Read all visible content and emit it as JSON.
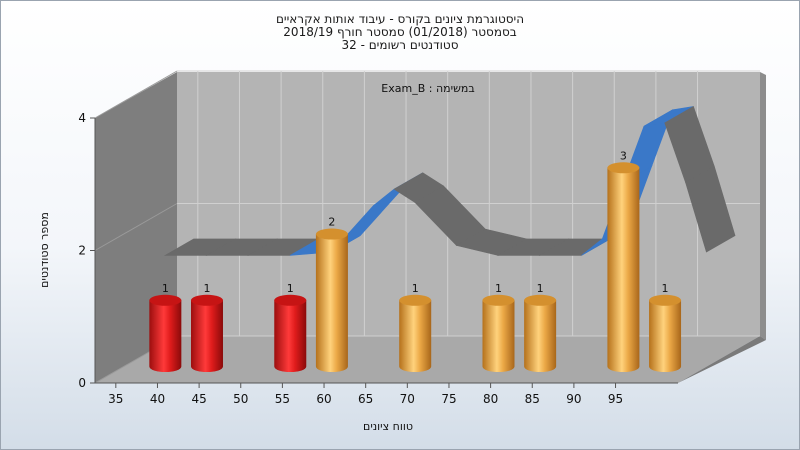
{
  "chart_data": {
    "type": "bar",
    "title_lines": [
      "היסטוגרמת ציונים בקורס - עיבוד אותות אקראיים",
      "בסמסטר  (01/2018)  סמסטר חורף 2018/19",
      "32 - סטודנטים רשומים"
    ],
    "subtitle": "Exam_B : במשימה",
    "xlabel": "טווח ציונים",
    "ylabel": "מספר סטודנטים",
    "x_ticks": [
      "35",
      "40",
      "45",
      "50",
      "55",
      "60",
      "65",
      "70",
      "75",
      "80",
      "85",
      "90",
      "95"
    ],
    "y_ticks": [
      "0",
      "2",
      "4"
    ],
    "ylim": [
      0,
      4
    ],
    "bars": [
      {
        "x": 37.5,
        "value": 1,
        "color": "#e02020"
      },
      {
        "x": 42.5,
        "value": 1,
        "color": "#e02020"
      },
      {
        "x": 52.5,
        "value": 1,
        "color": "#e02020"
      },
      {
        "x": 57.5,
        "value": 2,
        "color": "#e8a23a"
      },
      {
        "x": 67.5,
        "value": 1,
        "color": "#e8a23a"
      },
      {
        "x": 77.5,
        "value": 1,
        "color": "#e8a23a"
      },
      {
        "x": 82.5,
        "value": 1,
        "color": "#e8a23a"
      },
      {
        "x": 92.5,
        "value": 3,
        "color": "#e8a23a"
      },
      {
        "x": 97.5,
        "value": 1,
        "color": "#e8a23a"
      }
    ],
    "data_labels": [
      "1",
      "1",
      "1",
      "2",
      "1",
      "1",
      "1",
      "3",
      "1"
    ],
    "curve": [
      {
        "x": 35,
        "y": 1.5
      },
      {
        "x": 40,
        "y": 1.5
      },
      {
        "x": 45,
        "y": 1.5
      },
      {
        "x": 50,
        "y": 1.5
      },
      {
        "x": 55,
        "y": 1.55
      },
      {
        "x": 60,
        "y": 2.25
      },
      {
        "x": 62.5,
        "y": 2.5
      },
      {
        "x": 65,
        "y": 2.3
      },
      {
        "x": 70,
        "y": 1.65
      },
      {
        "x": 75,
        "y": 1.5
      },
      {
        "x": 80,
        "y": 1.5
      },
      {
        "x": 85,
        "y": 1.5
      },
      {
        "x": 87.5,
        "y": 1.75
      },
      {
        "x": 90,
        "y": 2.6
      },
      {
        "x": 92.5,
        "y": 3.45
      },
      {
        "x": 95,
        "y": 3.5
      },
      {
        "x": 97.5,
        "y": 2.6
      },
      {
        "x": 100,
        "y": 1.55
      }
    ],
    "colors": {
      "back_wall": "#b4b4b4",
      "left_wall": "#7e7e7e",
      "floor": "#a8a8a8",
      "grid": "#d2d2d2",
      "curve_front": "#3a78c8",
      "curve_back": "#6a6a6a"
    },
    "grid": true
  }
}
